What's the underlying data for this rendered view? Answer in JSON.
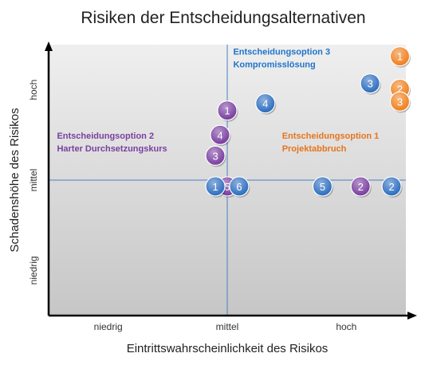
{
  "chart_data": {
    "type": "scatter",
    "title": "Risiken der Entscheidungsalternativen",
    "xlabel": "Eintrittswahrscheinlichkeit des Risikos",
    "ylabel": "Schadenshöhe des Risikos",
    "xlim": [
      0,
      3
    ],
    "ylim": [
      0,
      3
    ],
    "x_ticks": [
      {
        "value": 0.5,
        "label": "niedrig"
      },
      {
        "value": 1.5,
        "label": "mittel"
      },
      {
        "value": 2.5,
        "label": "hoch"
      }
    ],
    "y_ticks": [
      {
        "value": 0.5,
        "label": "niedrig"
      },
      {
        "value": 1.5,
        "label": "mittel"
      },
      {
        "value": 2.5,
        "label": "hoch"
      }
    ],
    "divider_x": 1.5,
    "divider_y": 1.5,
    "grid": false,
    "groups": [
      {
        "label_lines": [
          "Entscheidungsoption 1",
          "Projektabbruch"
        ],
        "color": "#f0811f",
        "label_color": "#e8741a",
        "label_x": 1.96,
        "label_y": 1.96,
        "points": [
          {
            "label": "1",
            "x": 2.95,
            "y": 2.87
          },
          {
            "label": "2",
            "x": 2.95,
            "y": 2.51
          },
          {
            "label": "3",
            "x": 2.95,
            "y": 2.37
          }
        ]
      },
      {
        "label_lines": [
          "Entscheidungsoption 2",
          "Harter Durchsetzungskurs"
        ],
        "color": "#7a3fa0",
        "label_color": "#7a3fa0",
        "label_x": 0.07,
        "label_y": 1.96,
        "points": [
          {
            "label": "1",
            "x": 1.5,
            "y": 2.27
          },
          {
            "label": "4",
            "x": 1.44,
            "y": 2.0
          },
          {
            "label": "3",
            "x": 1.4,
            "y": 1.77
          },
          {
            "label": "5",
            "x": 1.5,
            "y": 1.43
          },
          {
            "label": "2",
            "x": 2.62,
            "y": 1.43
          }
        ]
      },
      {
        "label_lines": [
          "Entscheidungsoption 3",
          "Kompromisslösung"
        ],
        "color": "#2e6fc0",
        "label_color": "#1e74c9",
        "label_x": 1.55,
        "label_y": 2.89,
        "points": [
          {
            "label": "4",
            "x": 1.82,
            "y": 2.35
          },
          {
            "label": "3",
            "x": 2.7,
            "y": 2.57
          },
          {
            "label": "1",
            "x": 1.4,
            "y": 1.43
          },
          {
            "label": "6",
            "x": 1.6,
            "y": 1.43
          },
          {
            "label": "5",
            "x": 2.3,
            "y": 1.43
          },
          {
            "label": "2",
            "x": 2.88,
            "y": 1.43
          }
        ]
      }
    ]
  }
}
